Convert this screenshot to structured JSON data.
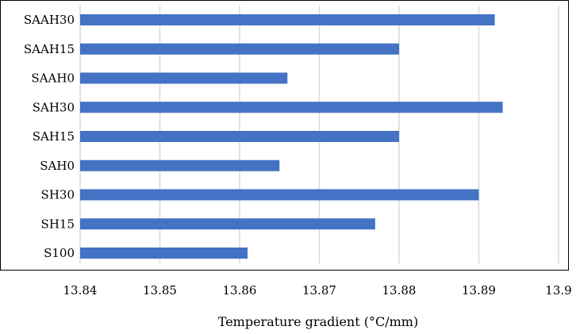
{
  "chart_data": {
    "type": "bar",
    "orientation": "horizontal",
    "title": "",
    "xlabel": "Temperature gradient (°C/mm)",
    "ylabel": "",
    "categories": [
      "S100",
      "SH15",
      "SH30",
      "SAH0",
      "SAH15",
      "SAH30",
      "SAAH0",
      "SAAH15",
      "SAAH30"
    ],
    "values": [
      13.861,
      13.877,
      13.89,
      13.865,
      13.88,
      13.893,
      13.866,
      13.88,
      13.892
    ],
    "xlim": [
      13.84,
      13.9
    ],
    "xticks": [
      "13.84",
      "13.85",
      "13.86",
      "13.87",
      "13.88",
      "13.89",
      "13.9"
    ],
    "grid": "vertical",
    "legend": "none",
    "bar_color": "#4472C4"
  }
}
